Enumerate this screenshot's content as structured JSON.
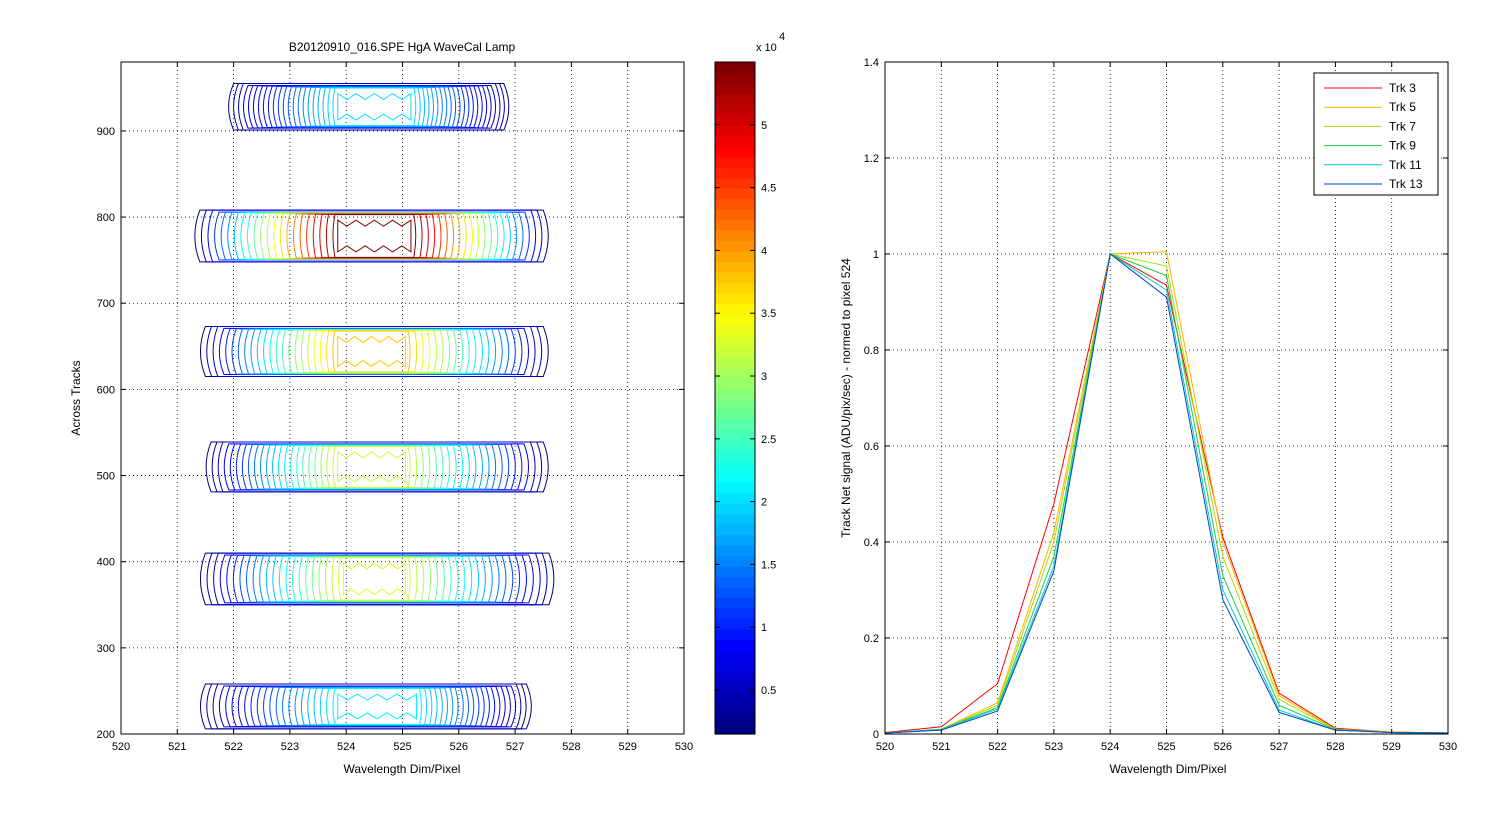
{
  "chart_data": [
    {
      "type": "contour",
      "title": "B20120910_016.SPE  HgA WaveCal Lamp",
      "xlabel": "Wavelength Dim/Pixel",
      "ylabel": "Across Tracks",
      "xlim": [
        520,
        530
      ],
      "ylim": [
        200,
        980
      ],
      "xticks": [
        "520",
        "521",
        "522",
        "523",
        "524",
        "525",
        "526",
        "527",
        "528",
        "529",
        "530"
      ],
      "yticks": [
        "200",
        "300",
        "400",
        "500",
        "600",
        "700",
        "800",
        "900"
      ],
      "grid": true,
      "colormap": "jet",
      "colorbar": {
        "range": [
          1500,
          55000
        ],
        "ticks": [
          "0.5",
          "1",
          "1.5",
          "2",
          "2.5",
          "3",
          "3.5",
          "4",
          "4.5",
          "5"
        ],
        "exponent_base": "x 10",
        "exponent": "4"
      },
      "tracks": [
        {
          "center_y": 232,
          "half_height": 26,
          "x_min": 521.5,
          "x_max": 527.2,
          "core_x": [
            523.8,
            525.3
          ],
          "peak": 21000
        },
        {
          "center_y": 380,
          "half_height": 30,
          "x_min": 521.5,
          "x_max": 527.6,
          "core_x": [
            523.9,
            525.1
          ],
          "peak": 33000
        },
        {
          "center_y": 510,
          "half_height": 29,
          "x_min": 521.6,
          "x_max": 527.5,
          "core_x": [
            523.8,
            525.1
          ],
          "peak": 32000
        },
        {
          "center_y": 644,
          "half_height": 29,
          "x_min": 521.5,
          "x_max": 527.5,
          "core_x": [
            523.8,
            525.1
          ],
          "peak": 38000
        },
        {
          "center_y": 778,
          "half_height": 30,
          "x_min": 521.4,
          "x_max": 527.5,
          "core_x": [
            523.8,
            525.2
          ],
          "peak": 55000
        },
        {
          "center_y": 928,
          "half_height": 27,
          "x_min": 522.0,
          "x_max": 526.8,
          "core_x": [
            523.8,
            525.2
          ],
          "peak": 20000
        }
      ]
    },
    {
      "type": "line",
      "title": "",
      "xlabel": "Wavelength Dim/Pixel",
      "ylabel": "Track Net signal (ADU/pix/sec) - normed to pixel 524",
      "xlim": [
        520,
        530
      ],
      "ylim": [
        0,
        1.4
      ],
      "xticks": [
        "520",
        "521",
        "522",
        "523",
        "524",
        "525",
        "526",
        "527",
        "528",
        "529",
        "530"
      ],
      "yticks": [
        "0",
        "0.2",
        "0.4",
        "0.6",
        "0.8",
        "1",
        "1.2",
        "1.4"
      ],
      "grid": true,
      "legend_position": "top-right",
      "x": [
        520,
        521,
        522,
        523,
        524,
        525,
        526,
        527,
        528,
        529,
        530
      ],
      "series": [
        {
          "name": "Trk 3",
          "color": "#ff0000",
          "values": [
            0.003,
            0.015,
            0.105,
            0.48,
            1.0,
            0.935,
            0.41,
            0.085,
            0.012,
            0.004,
            0.002
          ]
        },
        {
          "name": "Trk 5",
          "color": "#ffb400",
          "values": [
            0.002,
            0.01,
            0.065,
            0.42,
            1.0,
            1.005,
            0.4,
            0.08,
            0.01,
            0.004,
            0.002
          ]
        },
        {
          "name": "Trk 7",
          "color": "#aadd00",
          "values": [
            0.002,
            0.01,
            0.06,
            0.4,
            1.0,
            0.975,
            0.37,
            0.072,
            0.01,
            0.003,
            0.002
          ]
        },
        {
          "name": "Trk 9",
          "color": "#22cc44",
          "values": [
            0.002,
            0.01,
            0.055,
            0.37,
            1.0,
            0.955,
            0.33,
            0.06,
            0.009,
            0.003,
            0.002
          ]
        },
        {
          "name": "Trk 11",
          "color": "#00cccc",
          "values": [
            0.002,
            0.009,
            0.052,
            0.35,
            1.0,
            0.925,
            0.3,
            0.05,
            0.008,
            0.003,
            0.002
          ]
        },
        {
          "name": "Trk 13",
          "color": "#0044cc",
          "values": [
            0.002,
            0.008,
            0.048,
            0.34,
            1.0,
            0.91,
            0.28,
            0.045,
            0.008,
            0.003,
            0.002
          ]
        }
      ]
    }
  ]
}
